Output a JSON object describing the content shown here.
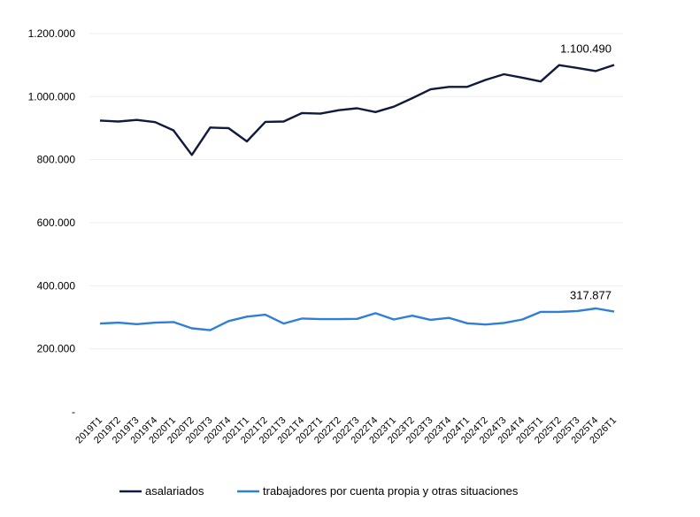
{
  "chart_data": {
    "type": "line",
    "title": "",
    "xlabel": "",
    "ylabel": "",
    "ylim": [
      0,
      1200000
    ],
    "y_ticks": [
      {
        "value": 0,
        "label": "-"
      },
      {
        "value": 200000,
        "label": "200.000"
      },
      {
        "value": 400000,
        "label": "400.000"
      },
      {
        "value": 600000,
        "label": "600.000"
      },
      {
        "value": 800000,
        "label": "800.000"
      },
      {
        "value": 1000000,
        "label": "1.000.000"
      },
      {
        "value": 1200000,
        "label": "1.200.000"
      }
    ],
    "grid": true,
    "legend": "bottom",
    "categories": [
      "2019T1",
      "2019T2",
      "2019T3",
      "2019T4",
      "2020T1",
      "2020T2",
      "2020T3",
      "2020T4",
      "2021T1",
      "2021T2",
      "2021T3",
      "2021T4",
      "2022T1",
      "2022T2",
      "2022T3",
      "2022T4",
      "2023T1",
      "2023T2",
      "2023T3",
      "2023T4",
      "2024T1",
      "2024T2",
      "2024T3",
      "2024T4",
      "2025T1",
      "2025T2",
      "2025T3",
      "2025T4",
      "2026T1"
    ],
    "series": [
      {
        "name": "asalariados",
        "color": "#0f1a3c",
        "values": [
          924000,
          921000,
          926000,
          919000,
          893000,
          815000,
          902000,
          900000,
          858000,
          920000,
          921000,
          948000,
          946000,
          957000,
          963000,
          951000,
          968000,
          995000,
          1023000,
          1031000,
          1031000,
          1053000,
          1071000,
          1060000,
          1048000,
          1100000,
          1091000,
          1081000,
          1100490
        ],
        "end_label": "1.100.490"
      },
      {
        "name": "trabajadores por cuenta propia y otras situaciones",
        "color": "#2f7fd6",
        "values": [
          280000,
          283000,
          278000,
          283000,
          285000,
          265000,
          259000,
          288000,
          302000,
          308000,
          280000,
          296000,
          294000,
          294000,
          295000,
          313000,
          293000,
          305000,
          292000,
          298000,
          281000,
          277000,
          282000,
          293000,
          317000,
          317000,
          320000,
          328000,
          317877
        ],
        "end_label": "317.877"
      }
    ]
  }
}
